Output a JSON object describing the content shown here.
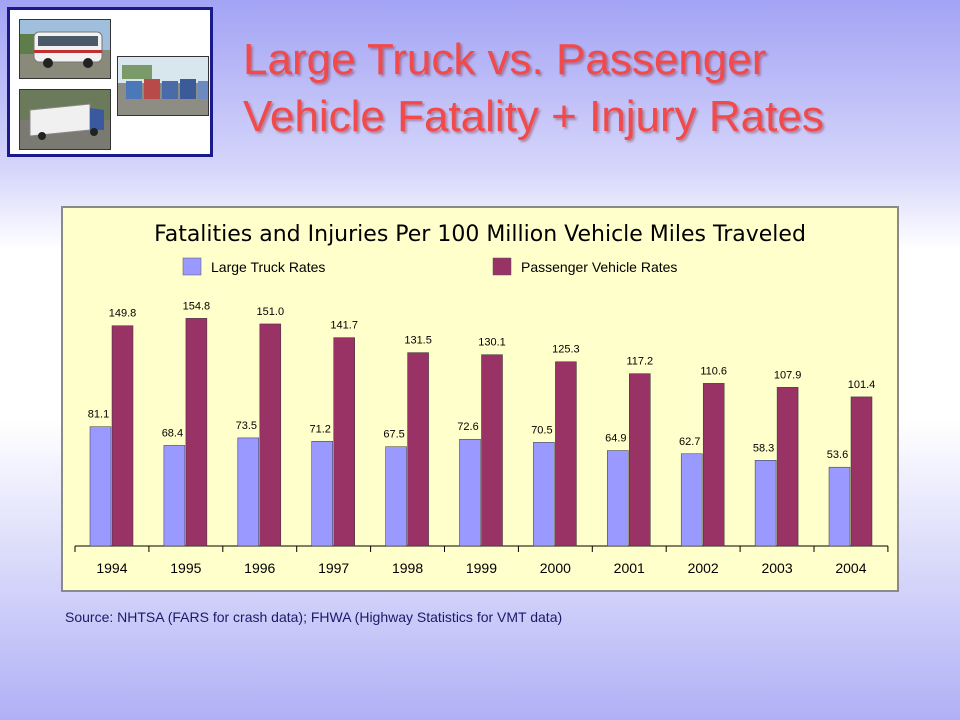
{
  "slide": {
    "title_line1": "Large Truck vs. Passenger",
    "title_line2": "Vehicle Fatality + Injury Rates",
    "source": "Source: NHTSA (FARS for crash data); FHWA (Highway Statistics for VMT data)"
  },
  "photos": [
    {
      "subject": "tour-bus"
    },
    {
      "subject": "parked-trucks"
    },
    {
      "subject": "truck-on-highway"
    }
  ],
  "colors": {
    "title": "#f24a4a",
    "truck": "#9999ff",
    "passenger": "#993366",
    "chart_bg": "#ffffcc",
    "frame": "#1a1a8c"
  },
  "chart_data": {
    "type": "bar",
    "title": "Fatalities and Injuries Per 100 Million Vehicle Miles Traveled",
    "xlabel": "",
    "ylabel": "",
    "ylim": [
      0,
      170
    ],
    "grid": false,
    "legend_position": "top",
    "categories": [
      "1994",
      "1995",
      "1996",
      "1997",
      "1998",
      "1999",
      "2000",
      "2001",
      "2002",
      "2003",
      "2004"
    ],
    "series": [
      {
        "name": "Large Truck Rates",
        "values": [
          81.1,
          68.4,
          73.5,
          71.2,
          67.5,
          72.6,
          70.5,
          64.9,
          62.7,
          58.3,
          53.6
        ]
      },
      {
        "name": "Passenger Vehicle Rates",
        "values": [
          149.8,
          154.8,
          151.0,
          141.7,
          131.5,
          130.1,
          125.3,
          117.2,
          110.6,
          107.9,
          101.4
        ]
      }
    ],
    "value_labels": [
      [
        "81.1",
        "68.4",
        "73.5",
        "71.2",
        "67.5",
        "72.6",
        "70.5",
        "64.9",
        "62.7",
        "58.3",
        "53.6"
      ],
      [
        "149.8",
        "154.8",
        "151.0",
        "141.7",
        "131.5",
        "130.1",
        "125.3",
        "117.2",
        "110.6",
        "107.9",
        "101.4"
      ]
    ]
  }
}
